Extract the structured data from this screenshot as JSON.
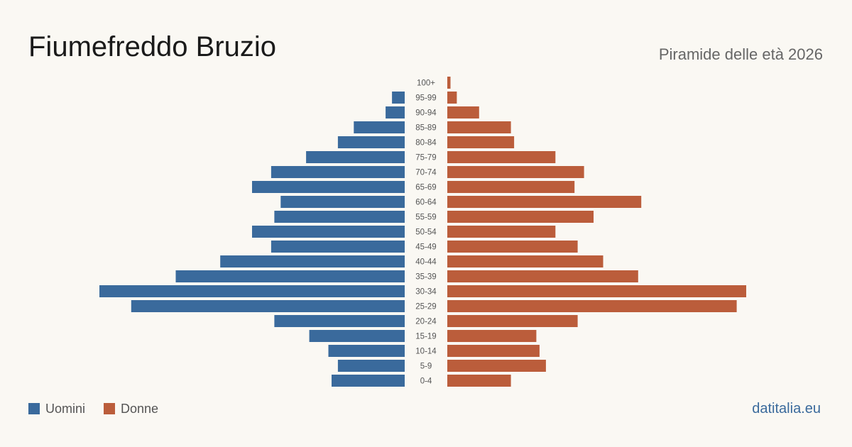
{
  "header": {
    "title": "Fiumefreddo  Bruzio",
    "subtitle": "Piramide delle età 2026"
  },
  "legend": {
    "men_label": "Uomini",
    "women_label": "Donne"
  },
  "footer": {
    "site": "datitalia.eu"
  },
  "colors": {
    "men": "#3a6a9c",
    "women": "#bb5d3b",
    "background": "#faf8f3"
  },
  "chart_data": {
    "type": "bar",
    "orientation": "horizontal-pyramid",
    "categories": [
      "100+",
      "95-99",
      "90-94",
      "85-89",
      "80-84",
      "75-79",
      "70-74",
      "65-69",
      "60-64",
      "55-59",
      "50-54",
      "45-49",
      "40-44",
      "35-39",
      "30-34",
      "25-29",
      "20-24",
      "15-19",
      "10-14",
      "5-9",
      "0-4"
    ],
    "series": [
      {
        "name": "Uomini",
        "values": [
          0,
          4,
          6,
          16,
          21,
          31,
          42,
          48,
          39,
          41,
          48,
          42,
          58,
          72,
          96,
          86,
          41,
          30,
          24,
          21,
          23
        ]
      },
      {
        "name": "Donne",
        "values": [
          1,
          3,
          10,
          20,
          21,
          34,
          43,
          40,
          61,
          46,
          34,
          41,
          49,
          60,
          94,
          91,
          41,
          28,
          29,
          31,
          20
        ]
      }
    ],
    "xlim": [
      0,
      96
    ],
    "legend_position": "bottom-left"
  }
}
